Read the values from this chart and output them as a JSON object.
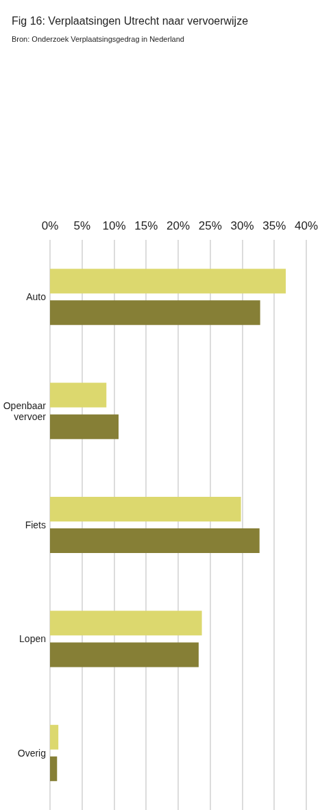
{
  "chart_data": {
    "type": "bar",
    "orientation": "horizontal",
    "title": "Fig 16: Verplaatsingen Utrecht naar vervoerwijze",
    "annotations": [
      "Bron: Onderzoek Verplaatsingsgedrag in Nederland"
    ],
    "categories": [
      "Auto",
      "Openbaar vervoer",
      "Fiets",
      "Lopen",
      "Overig"
    ],
    "series": [
      {
        "color": "#dcd86e",
        "values": [
          36.8,
          8.8,
          29.8,
          23.7,
          1.3
        ]
      },
      {
        "color": "#867f36",
        "values": [
          32.8,
          10.7,
          32.7,
          23.2,
          1.1
        ]
      }
    ],
    "xlim": [
      0,
      40
    ],
    "xticks": [
      {
        "value": 0,
        "label": "0%"
      },
      {
        "value": 5,
        "label": "5%"
      },
      {
        "value": 10,
        "label": "10%"
      },
      {
        "value": 15,
        "label": "15%"
      },
      {
        "value": 20,
        "label": "20%"
      },
      {
        "value": 25,
        "label": "25%"
      },
      {
        "value": 30,
        "label": "30%"
      },
      {
        "value": 35,
        "label": "35%"
      },
      {
        "value": 40,
        "label": "40%"
      }
    ],
    "grid": "x"
  }
}
